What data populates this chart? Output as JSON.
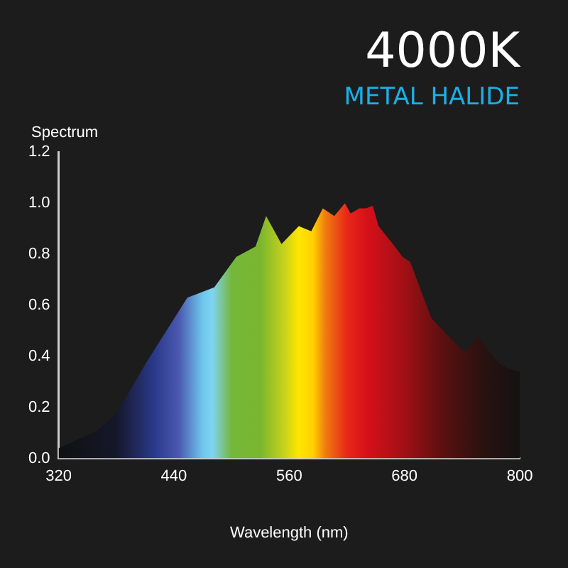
{
  "chart_data": {
    "type": "area",
    "title": "4000K",
    "subtitle": "METAL HALIDE",
    "xlabel": "Wavelength (nm)",
    "ylabel": "Spectrum",
    "x": [
      320,
      361,
      381,
      412,
      454,
      482,
      505,
      525,
      536,
      552,
      570,
      583,
      595,
      607,
      618,
      624,
      633,
      640,
      647,
      653,
      666,
      678,
      686,
      708,
      723,
      739,
      746,
      756,
      766,
      779,
      789,
      800
    ],
    "values": [
      0.04,
      0.11,
      0.18,
      0.38,
      0.63,
      0.67,
      0.79,
      0.83,
      0.95,
      0.84,
      0.91,
      0.89,
      0.98,
      0.95,
      1.0,
      0.96,
      0.98,
      0.98,
      0.99,
      0.91,
      0.85,
      0.79,
      0.77,
      0.55,
      0.49,
      0.43,
      0.42,
      0.48,
      0.43,
      0.37,
      0.35,
      0.34
    ],
    "xlim": [
      320,
      800
    ],
    "xticks": [
      320,
      440,
      560,
      680,
      800
    ],
    "ylim": [
      0,
      1.2
    ],
    "yticks": [
      {
        "value": 0,
        "label": "0.0"
      },
      0.2,
      0.4,
      0.6,
      0.8,
      {
        "value": 1,
        "label": "1.0"
      },
      1.2
    ],
    "grid": false,
    "legend": false
  }
}
